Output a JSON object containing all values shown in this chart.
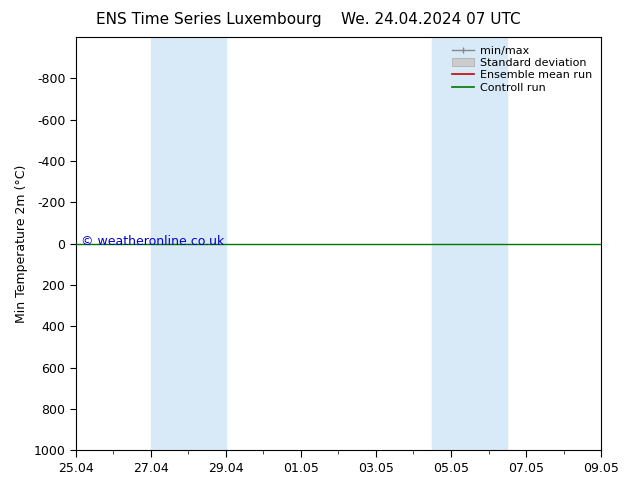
{
  "title_left": "ENS Time Series Luxembourg",
  "title_right": "We. 24.04.2024 07 UTC",
  "ylabel": "Min Temperature 2m (°C)",
  "ylim_top": -1000,
  "ylim_bottom": 1000,
  "yticks": [
    -800,
    -600,
    -400,
    -200,
    0,
    200,
    400,
    600,
    800,
    1000
  ],
  "xlim_start": 0,
  "xlim_end": 14,
  "xtick_labels": [
    "25.04",
    "27.04",
    "29.04",
    "01.05",
    "03.05",
    "05.05",
    "07.05",
    "09.05"
  ],
  "xtick_positions": [
    0,
    2,
    4,
    6,
    8,
    10,
    12,
    14
  ],
  "shaded_bands": [
    {
      "xmin": 2,
      "xmax": 4
    },
    {
      "xmin": 9.5,
      "xmax": 11.5
    }
  ],
  "shade_color": "#d8eaf8",
  "control_run_y": 0,
  "control_run_color": "#007700",
  "ensemble_mean_color": "#cc0000",
  "minmax_color": "#888888",
  "std_dev_color": "#cccccc",
  "copyright_text": "© weatheronline.co.uk",
  "copyright_color": "#0000cc",
  "background_color": "#ffffff",
  "plot_bg_color": "#ffffff",
  "legend_labels": [
    "min/max",
    "Standard deviation",
    "Ensemble mean run",
    "Controll run"
  ],
  "legend_colors": [
    "#888888",
    "#cccccc",
    "#cc0000",
    "#007700"
  ],
  "title_fontsize": 11,
  "axis_fontsize": 9,
  "legend_fontsize": 8
}
